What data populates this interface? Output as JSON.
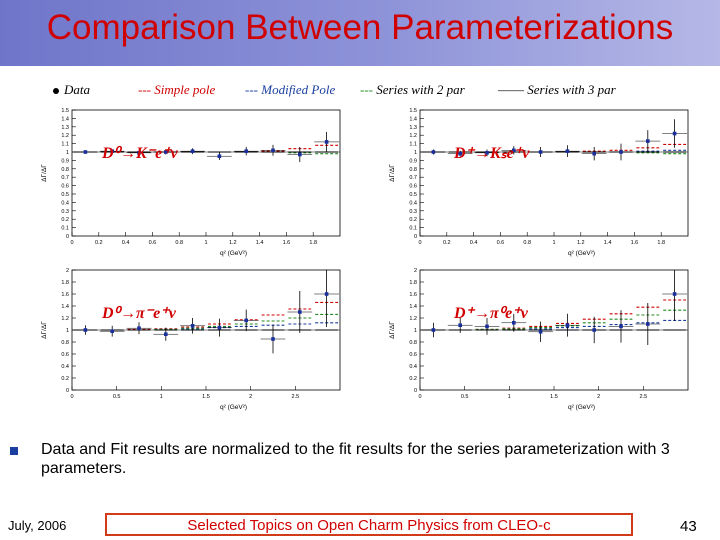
{
  "title": "Comparison Between Parameterizations",
  "legend": [
    {
      "label": "Data",
      "color": "#000000",
      "marker": "dot"
    },
    {
      "label": "Simple pole",
      "color": "#d10000",
      "dash": "--- "
    },
    {
      "label": "Modified Pole",
      "color": "#1a3fa0",
      "dash": "--- "
    },
    {
      "label": "Series with 2 par",
      "color": "#228b22",
      "dash": "--- "
    },
    {
      "label": "Series with 3 par",
      "color": "#000000",
      "dash": "—— "
    }
  ],
  "chart_data": [
    {
      "type": "scatter",
      "id": "d0-k",
      "label": "D⁰→K⁻e⁺ν",
      "xlabel": "q² (GeV²)",
      "ylabel": "ΔΓ/ΔΓ",
      "xlim": [
        0,
        2.0
      ],
      "ylim": [
        0,
        1.5
      ],
      "xticks": [
        "0",
        "0.2",
        "0.4",
        "0.6",
        "0.8",
        "1",
        "1.2",
        "1.4",
        "1.6",
        "1.8"
      ],
      "yticks": [
        "0",
        "0.1",
        "0.2",
        "0.3",
        "0.4",
        "0.5",
        "0.6",
        "0.7",
        "0.8",
        "0.9",
        "1",
        "1.1",
        "1.2",
        "1.3",
        "1.4",
        "1.5"
      ],
      "bin_edges": [
        0,
        0.2,
        0.4,
        0.6,
        0.8,
        1.0,
        1.2,
        1.4,
        1.6,
        1.8,
        2.0
      ],
      "data": {
        "y": [
          1.0,
          1.01,
          0.99,
          1.0,
          1.01,
          0.95,
          1.01,
          1.02,
          0.97,
          1.12
        ],
        "err": [
          0.02,
          0.02,
          0.025,
          0.03,
          0.035,
          0.045,
          0.05,
          0.065,
          0.09,
          0.12
        ]
      },
      "series": [
        {
          "name": "Simple pole",
          "color": "#d10000",
          "values": [
            1.0,
            1.0,
            1.0,
            1.0,
            1.0,
            1.0,
            1.0,
            1.01,
            1.04,
            1.08
          ]
        },
        {
          "name": "Modified Pole",
          "color": "#1a3fa0",
          "values": [
            1.0,
            1.0,
            1.0,
            1.0,
            1.0,
            1.0,
            1.0,
            1.0,
            1.0,
            1.0
          ]
        },
        {
          "name": "Series with 2 par",
          "color": "#228b22",
          "values": [
            1.0,
            1.0,
            1.0,
            1.0,
            1.0,
            1.0,
            1.0,
            1.0,
            0.99,
            0.98
          ]
        },
        {
          "name": "Series with 3 par",
          "color": "#000000",
          "values": [
            1.0,
            1.0,
            1.0,
            1.0,
            1.0,
            1.0,
            1.0,
            1.0,
            1.0,
            1.0
          ]
        }
      ]
    },
    {
      "type": "scatter",
      "id": "dplus-ks",
      "label": "D⁺→Kₛe⁺ν",
      "xlabel": "q² (GeV²)",
      "ylabel": "ΔΓ/ΔΓ",
      "xlim": [
        0,
        2.0
      ],
      "ylim": [
        0,
        1.5
      ],
      "xticks": [
        "0",
        "0.2",
        "0.4",
        "0.6",
        "0.8",
        "1",
        "1.2",
        "1.4",
        "1.6",
        "1.8"
      ],
      "yticks": [
        "0",
        "0.1",
        "0.2",
        "0.3",
        "0.4",
        "0.5",
        "0.6",
        "0.7",
        "0.8",
        "0.9",
        "1",
        "1.1",
        "1.2",
        "1.3",
        "1.4",
        "1.5"
      ],
      "bin_edges": [
        0,
        0.2,
        0.4,
        0.6,
        0.8,
        1.0,
        1.2,
        1.4,
        1.6,
        1.8,
        2.0
      ],
      "data": {
        "y": [
          1.0,
          0.98,
          0.99,
          1.02,
          1.0,
          1.01,
          0.98,
          1.0,
          1.13,
          1.22
        ],
        "err": [
          0.03,
          0.035,
          0.04,
          0.05,
          0.06,
          0.07,
          0.08,
          0.1,
          0.13,
          0.17
        ]
      },
      "series": [
        {
          "name": "Simple pole",
          "color": "#d10000",
          "values": [
            1.0,
            1.0,
            1.0,
            1.0,
            1.0,
            1.0,
            1.01,
            1.02,
            1.05,
            1.09
          ]
        },
        {
          "name": "Modified Pole",
          "color": "#1a3fa0",
          "values": [
            1.0,
            1.0,
            1.0,
            1.0,
            1.0,
            1.0,
            1.0,
            1.0,
            1.01,
            1.02
          ]
        },
        {
          "name": "Series with 2 par",
          "color": "#228b22",
          "values": [
            1.0,
            1.0,
            1.0,
            1.0,
            1.0,
            1.0,
            1.0,
            1.0,
            0.99,
            0.98
          ]
        },
        {
          "name": "Series with 3 par",
          "color": "#000000",
          "values": [
            1.0,
            1.0,
            1.0,
            1.0,
            1.0,
            1.0,
            1.0,
            1.0,
            1.0,
            1.0
          ]
        }
      ]
    },
    {
      "type": "scatter",
      "id": "d0-pi",
      "label": "D⁰→π⁻e⁺ν",
      "xlabel": "q² (GeV²)",
      "ylabel": "ΔΓ/ΔΓ",
      "xlim": [
        0,
        3.0
      ],
      "ylim": [
        0,
        2.0
      ],
      "xticks": [
        "0",
        "0.5",
        "1",
        "1.5",
        "2",
        "2.5"
      ],
      "yticks": [
        "0",
        "0.2",
        "0.4",
        "0.6",
        "0.8",
        "1",
        "1.2",
        "1.4",
        "1.6",
        "1.8",
        "2"
      ],
      "bin_edges": [
        0,
        0.3,
        0.6,
        0.9,
        1.2,
        1.5,
        1.8,
        2.1,
        2.4,
        2.7,
        3.0
      ],
      "data": {
        "y": [
          1.0,
          0.98,
          1.03,
          0.93,
          1.07,
          1.04,
          1.16,
          0.85,
          1.3,
          1.6
        ],
        "err": [
          0.08,
          0.09,
          0.1,
          0.11,
          0.13,
          0.15,
          0.18,
          0.24,
          0.35,
          0.55
        ]
      },
      "series": [
        {
          "name": "Simple pole",
          "color": "#d10000",
          "values": [
            1.0,
            1.0,
            1.01,
            1.02,
            1.05,
            1.1,
            1.17,
            1.25,
            1.35,
            1.46
          ]
        },
        {
          "name": "Modified Pole",
          "color": "#1a3fa0",
          "values": [
            1.0,
            1.0,
            1.0,
            1.01,
            1.02,
            1.04,
            1.06,
            1.08,
            1.1,
            1.12
          ]
        },
        {
          "name": "Series with 2 par",
          "color": "#228b22",
          "values": [
            1.0,
            1.0,
            1.0,
            1.01,
            1.03,
            1.06,
            1.1,
            1.15,
            1.2,
            1.26
          ]
        },
        {
          "name": "Series with 3 par",
          "color": "#000000",
          "values": [
            1.0,
            1.0,
            1.0,
            1.0,
            1.0,
            1.0,
            1.0,
            1.0,
            1.0,
            1.0
          ]
        }
      ]
    },
    {
      "type": "scatter",
      "id": "dplus-pi0",
      "label": "D⁺→π⁰e⁺ν",
      "xlabel": "q² (GeV²)",
      "ylabel": "ΔΓ/ΔΓ",
      "xlim": [
        0,
        3.0
      ],
      "ylim": [
        0,
        2.0
      ],
      "xticks": [
        "0",
        "0.5",
        "1",
        "1.5",
        "2",
        "2.5"
      ],
      "yticks": [
        "0",
        "0.2",
        "0.4",
        "0.6",
        "0.8",
        "1",
        "1.2",
        "1.4",
        "1.6",
        "1.8",
        "2"
      ],
      "bin_edges": [
        0,
        0.3,
        0.6,
        0.9,
        1.2,
        1.5,
        1.8,
        2.1,
        2.4,
        2.7,
        3.0
      ],
      "data": {
        "y": [
          1.0,
          1.08,
          1.06,
          1.12,
          0.97,
          1.08,
          1.0,
          1.06,
          1.1,
          1.6
        ],
        "err": [
          0.12,
          0.13,
          0.14,
          0.15,
          0.17,
          0.19,
          0.22,
          0.27,
          0.35,
          0.45
        ]
      },
      "series": [
        {
          "name": "Simple pole",
          "color": "#d10000",
          "values": [
            1.0,
            1.0,
            1.01,
            1.03,
            1.06,
            1.11,
            1.18,
            1.27,
            1.38,
            1.5
          ]
        },
        {
          "name": "Modified Pole",
          "color": "#1a3fa0",
          "values": [
            1.0,
            1.0,
            1.0,
            1.01,
            1.02,
            1.04,
            1.06,
            1.09,
            1.12,
            1.16
          ]
        },
        {
          "name": "Series with 2 par",
          "color": "#228b22",
          "values": [
            1.0,
            1.0,
            1.01,
            1.02,
            1.04,
            1.07,
            1.12,
            1.18,
            1.25,
            1.33
          ]
        },
        {
          "name": "Series with 3 par",
          "color": "#000000",
          "values": [
            1.0,
            1.0,
            1.0,
            1.0,
            1.0,
            1.0,
            1.0,
            1.0,
            1.0,
            1.0
          ]
        }
      ]
    }
  ],
  "note": "Data and Fit results are normalized to the fit results for the series parameterization with 3 parameters.",
  "footer": {
    "date": "July, 2006",
    "center": "Selected Topics on Open Charm Physics from CLEO-c",
    "page": "43"
  }
}
